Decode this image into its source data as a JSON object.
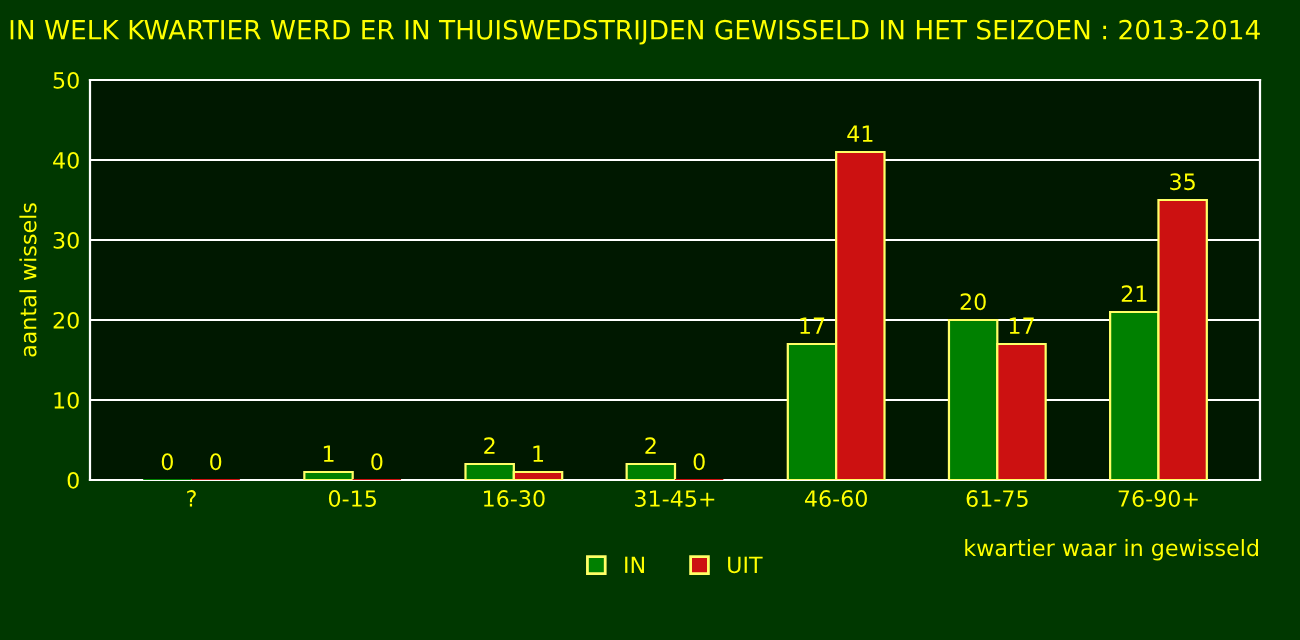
{
  "chart_data": {
    "type": "bar",
    "title": "IN WELK KWARTIER WERD ER IN THUISWEDSTRIJDEN GEWISSELD IN HET SEIZOEN : 2013-2014",
    "xlabel": "kwartier waar in gewisseld",
    "ylabel": "aantal wissels",
    "categories": [
      "?",
      "0-15",
      "16-30",
      "31-45+",
      "46-60",
      "61-75",
      "76-90+"
    ],
    "series": [
      {
        "name": "IN",
        "color": "#008000",
        "values": [
          0,
          1,
          2,
          2,
          17,
          20,
          21
        ]
      },
      {
        "name": "UIT",
        "color": "#cc1111",
        "values": [
          0,
          0,
          1,
          0,
          41,
          17,
          35
        ]
      }
    ],
    "ylim": [
      0,
      50
    ],
    "yticks": [
      0,
      10,
      20,
      30,
      40,
      50
    ],
    "grid": "y",
    "legend": "bottom",
    "data_labels": true
  }
}
